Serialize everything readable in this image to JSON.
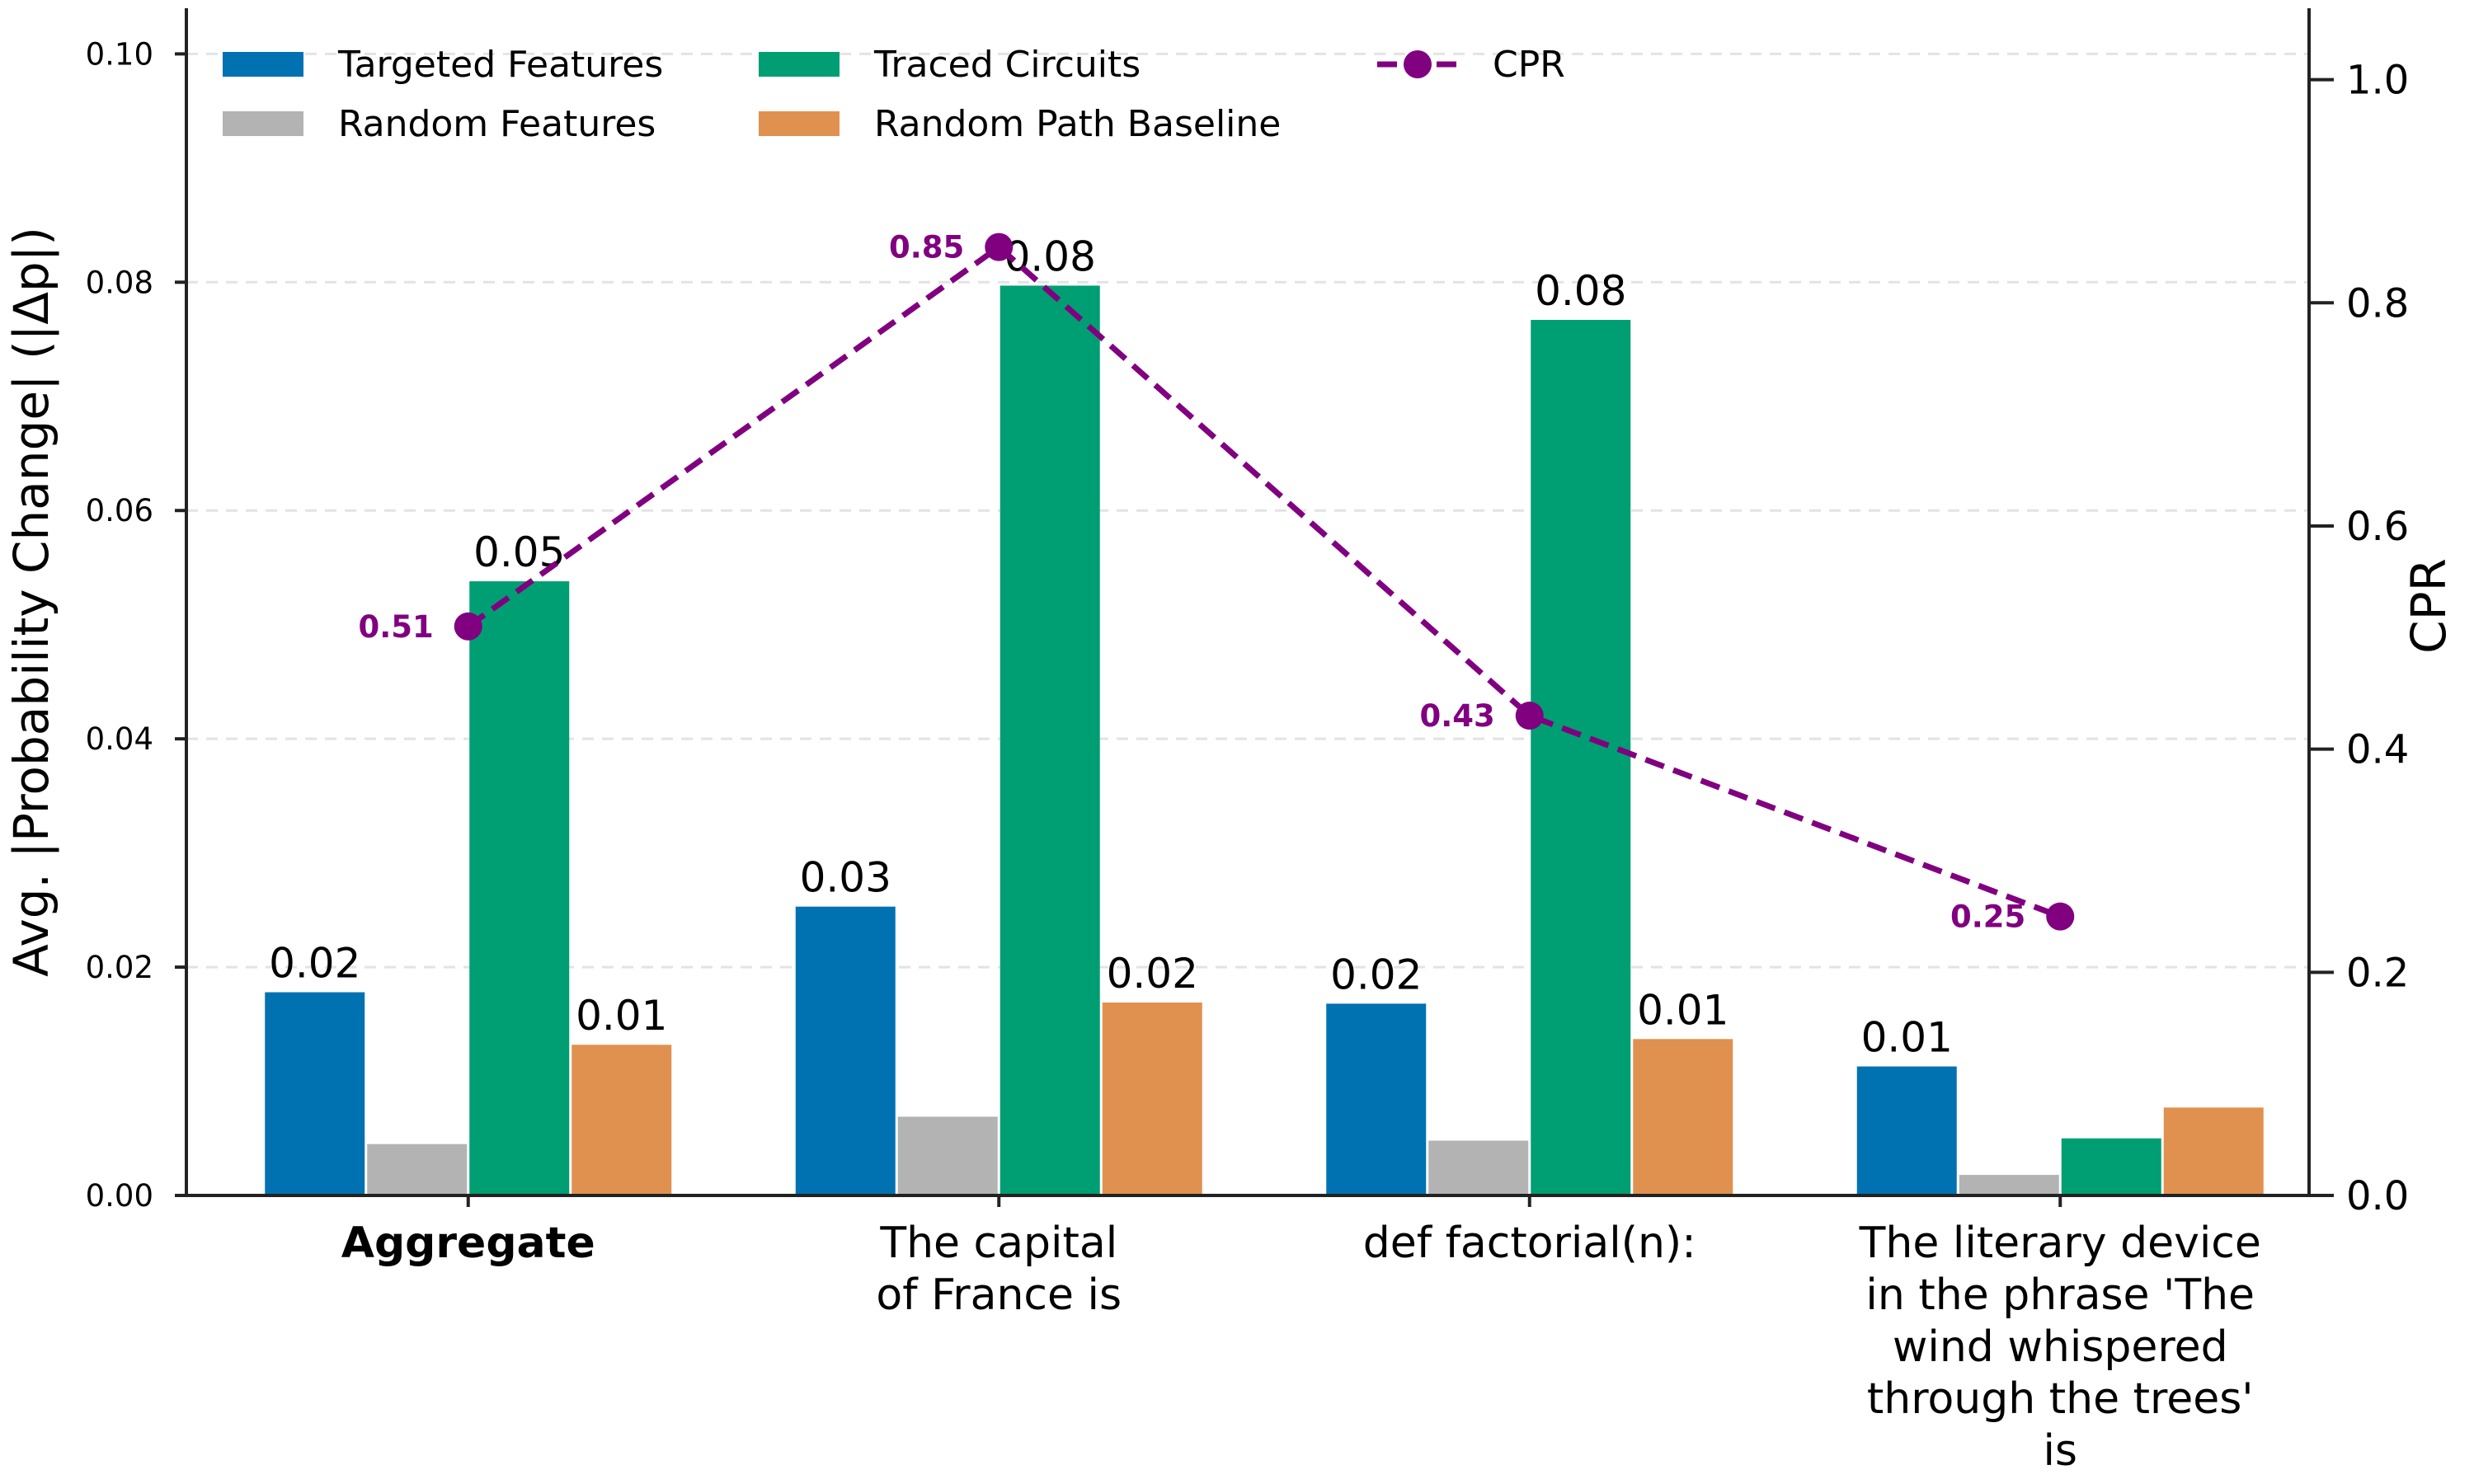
{
  "chart_data": {
    "type": "bar",
    "categories": [
      "Aggregate",
      "The capital of France is",
      "def factorial(n):",
      "The literary device in the phrase 'The wind whispered through the trees' is"
    ],
    "category_lines": [
      [
        "Aggregate"
      ],
      [
        "The capital",
        "of France is"
      ],
      [
        "def factorial(n):"
      ],
      [
        "The literary device",
        "in the phrase 'The",
        "wind whispered",
        "through the trees'",
        "is"
      ]
    ],
    "bold_categories": [
      "Aggregate"
    ],
    "ylabel": "Avg. |Probability Change| (|Δp|)",
    "ylabel_right": "CPR",
    "ylim": [
      0,
      0.104
    ],
    "yticks": [
      0.0,
      0.02,
      0.04,
      0.06,
      0.08,
      0.1
    ],
    "ytick_labels": [
      "0.00",
      "0.02",
      "0.04",
      "0.06",
      "0.08",
      "0.10"
    ],
    "ylim_right": [
      0,
      1.064
    ],
    "yticks_right": [
      0.0,
      0.2,
      0.4,
      0.6,
      0.8,
      1.0
    ],
    "ytick_labels_right": [
      "0.0",
      "0.2",
      "0.4",
      "0.6",
      "0.8",
      "1.0"
    ],
    "grid": "horizontal dashed",
    "legend_position": "top, three columns",
    "series": [
      {
        "name": "Targeted Features",
        "color": "#0072b2",
        "values": [
          0.0178,
          0.0253,
          0.0168,
          0.0113
        ],
        "labels": [
          "0.02",
          "0.03",
          "0.02",
          "0.01"
        ]
      },
      {
        "name": "Random Features",
        "color": "#b3b3b3",
        "values": [
          0.0045,
          0.0069,
          0.0048,
          0.0018
        ],
        "labels": [
          "",
          "",
          "",
          ""
        ]
      },
      {
        "name": "Traced Circuits",
        "color": "#009e73",
        "values": [
          0.0538,
          0.0797,
          0.0767,
          0.005
        ],
        "labels": [
          "0.05",
          "0.08",
          "0.08",
          ""
        ]
      },
      {
        "name": "Random Path Baseline",
        "color": "#e0914f",
        "values": [
          0.0132,
          0.0169,
          0.0137,
          0.0077
        ],
        "labels": [
          "0.01",
          "0.02",
          "0.01",
          ""
        ]
      }
    ],
    "line_series": {
      "name": "CPR",
      "color": "#800080",
      "axis": "right",
      "values": [
        0.51,
        0.85,
        0.43,
        0.25
      ],
      "labels": [
        "0.51",
        "0.85",
        "0.43",
        "0.25"
      ],
      "style": "dashed with circle markers"
    }
  }
}
